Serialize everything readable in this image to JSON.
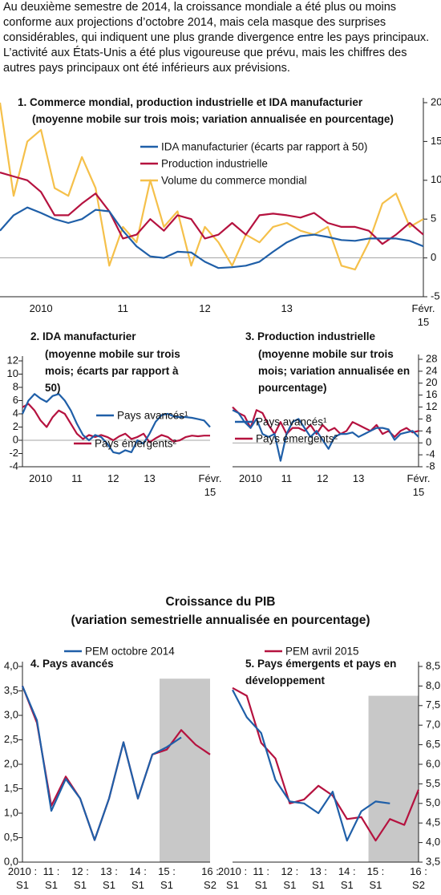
{
  "intro": "Au deuxième semestre de 2014, la croissance mondiale a été plus ou moins conforme aux projections d’octobre 2014, mais cela masque des surprises considérables, qui indiquent une plus grande divergence entre les pays principaux. L’activité aux États-Unis a été plus vigoureuse que prévu, mais les chiffres des autres pays principaux ont été inférieurs aux prévisions.",
  "section_title": "Croissance du PIB",
  "section_subtitle": "(variation semestrielle annualisée en pourcentage)",
  "chart_data": [
    {
      "type": "line",
      "title": "1. Commerce mondial, production industrielle et IDA manufacturier",
      "subtitle": "(moyenne mobile sur trois mois; variation annualisée en pourcentage)",
      "y_axis_side": "right",
      "zero_line": true,
      "categories": [
        null,
        null,
        null,
        "2010",
        null,
        null,
        null,
        null,
        null,
        "11",
        null,
        null,
        null,
        null,
        null,
        "12",
        null,
        null,
        null,
        null,
        null,
        "13",
        null,
        null,
        null,
        null,
        null,
        null,
        null,
        null,
        null,
        "Févr.\n15"
      ],
      "series": [
        {
          "name": "IDA manufacturier (écarts par rapport à 50)",
          "color": "#1f5fa8",
          "values": [
            3.5,
            5.5,
            6.5,
            5.8,
            5,
            4.5,
            5,
            6.2,
            6,
            3.5,
            1.5,
            0.2,
            0,
            0.8,
            0.7,
            -0.5,
            -1.3,
            -1.2,
            -1,
            -0.5,
            0.8,
            2,
            2.8,
            3,
            2.7,
            2.3,
            2.2,
            2.5,
            2.5,
            2.5,
            2.2,
            1.5
          ]
        },
        {
          "name": "Production industrielle",
          "color": "#b5123f",
          "values": [
            11,
            10.5,
            10,
            8.5,
            5.5,
            5.5,
            7,
            8.3,
            6,
            2.5,
            3,
            5,
            3.5,
            5.5,
            5,
            2.5,
            3,
            4.5,
            3,
            5.5,
            5.7,
            5.5,
            5.2,
            5.8,
            4.5,
            4,
            4,
            3.5,
            1.8,
            3,
            4.5,
            3
          ]
        },
        {
          "name": "Volume du commerce mondial",
          "color": "#f5c04a",
          "values": [
            20,
            8,
            15,
            16.5,
            9,
            8,
            13,
            9,
            -1,
            4,
            2,
            10,
            4,
            6,
            -1,
            4,
            2,
            -1,
            3,
            2,
            4,
            4.5,
            3.5,
            3,
            4,
            -1,
            -1.5,
            2,
            7,
            8.3,
            4,
            5
          ]
        }
      ],
      "ylim": [
        -5,
        20
      ],
      "yticks": [
        -5,
        0,
        5,
        10,
        15,
        20
      ]
    },
    {
      "type": "line",
      "title": "2. IDA manufacturier",
      "subtitle": "(moyenne mobile sur trois mois; écarts par rapport à 50)",
      "y_axis_side": "left",
      "zero_line": true,
      "categories": [
        null,
        null,
        null,
        "2010",
        null,
        null,
        null,
        null,
        null,
        "11",
        null,
        null,
        null,
        null,
        null,
        "12",
        null,
        null,
        null,
        null,
        null,
        "13",
        null,
        null,
        null,
        null,
        null,
        null,
        null,
        null,
        null,
        "Févr.\n15"
      ],
      "series": [
        {
          "name": "Pays avancés¹",
          "color": "#1f5fa8",
          "values": [
            4,
            6,
            7,
            6.3,
            5.8,
            6.7,
            7,
            6,
            4.5,
            2.5,
            0.8,
            0,
            0.8,
            0.5,
            -0.5,
            -1.8,
            -2,
            -1.5,
            -1.8,
            0,
            -0.5,
            1,
            2.8,
            3.8,
            4,
            3.6,
            3.5,
            3.5,
            3.4,
            3.2,
            3,
            2
          ]
        },
        {
          "name": "Pays émergents²",
          "color": "#b5123f",
          "values": [
            5,
            5.5,
            4.5,
            3,
            2,
            3.5,
            4.5,
            4,
            2.5,
            1,
            0.2,
            0.8,
            0.5,
            0.8,
            0.5,
            0,
            0.6,
            1,
            0.2,
            0.5,
            1,
            -0.3,
            0.3,
            0.8,
            0.5,
            -0.2,
            0,
            0.5,
            0.7,
            0.6,
            0.7,
            0.7
          ]
        }
      ],
      "ylim": [
        -4,
        12
      ],
      "yticks": [
        -4,
        -2,
        0,
        2,
        4,
        6,
        8,
        10,
        12
      ]
    },
    {
      "type": "line",
      "title": "3. Production industrielle",
      "subtitle": "(moyenne mobile sur trois mois; variation annualisée en pourcentage)",
      "y_axis_side": "right",
      "zero_line": true,
      "categories": [
        null,
        null,
        null,
        "2010",
        null,
        null,
        null,
        null,
        null,
        "11",
        null,
        null,
        null,
        null,
        null,
        "12",
        null,
        null,
        null,
        null,
        null,
        "13",
        null,
        null,
        null,
        null,
        null,
        null,
        null,
        null,
        null,
        "Févr.\n15"
      ],
      "series": [
        {
          "name": "Pays avancés¹",
          "color": "#1f5fa8",
          "values": [
            11,
            10,
            7,
            5,
            8,
            3,
            2,
            3,
            -6,
            3,
            7,
            8,
            5,
            2,
            4,
            1,
            -2,
            2,
            3,
            3,
            3.5,
            2,
            3,
            4,
            5,
            5,
            4.5,
            1,
            3,
            3.5,
            4,
            2
          ]
        },
        {
          "name": "Pays émergents²",
          "color": "#b5123f",
          "values": [
            12,
            10,
            9,
            5,
            11,
            10,
            6,
            3,
            7,
            3,
            5,
            5,
            4,
            6,
            3,
            6,
            4,
            5,
            3,
            4,
            7,
            6,
            5,
            4,
            6,
            3,
            4,
            2,
            4,
            5,
            3.5,
            4
          ]
        }
      ],
      "ylim": [
        -8,
        28
      ],
      "yticks": [
        -8,
        -4,
        0,
        4,
        8,
        12,
        16,
        20,
        24,
        28
      ]
    },
    {
      "type": "line",
      "title": "4. Pays avancés",
      "y_axis_side": "left",
      "zero_line": false,
      "categories": [
        "2010 :\nS1",
        null,
        "11 :\nS1",
        null,
        "12 :\nS1",
        null,
        "13 :\nS1",
        null,
        "14 :\nS1",
        null,
        "15 :\nS1",
        null,
        null,
        "16 :\nS2"
      ],
      "series": [
        {
          "name": "PEM octobre 2014",
          "color": "#1f5fa8",
          "values": [
            3.6,
            2.9,
            1.05,
            1.7,
            1.3,
            0.45,
            1.3,
            2.45,
            1.3,
            2.2,
            2.35,
            2.55,
            null,
            null
          ]
        },
        {
          "color": "#b5123f",
          "values": [
            3.6,
            2.85,
            1.15,
            1.75,
            1.3,
            0.45,
            1.3,
            2.45,
            1.3,
            2.2,
            2.3,
            2.7,
            2.4,
            2.2
          ]
        }
      ],
      "ylim": [
        0,
        4
      ],
      "yticks": [
        {
          "value": 0,
          "label": "0,0"
        },
        {
          "value": 0.5,
          "label": "0,5"
        },
        {
          "value": 1,
          "label": "1,0"
        },
        {
          "value": 1.5,
          "label": "1,5"
        },
        {
          "value": 2,
          "label": "2,0"
        },
        {
          "value": 2.5,
          "label": "2,5"
        },
        {
          "value": 3,
          "label": "3,0"
        },
        {
          "value": 3.5,
          "label": "3,5"
        },
        {
          "value": 4,
          "label": "4,0"
        }
      ]
    },
    {
      "type": "line",
      "title": "5. Pays émergents et pays en développement",
      "y_axis_side": "right",
      "zero_line": false,
      "categories": [
        "2010 :\nS1",
        null,
        "11 :\nS1",
        null,
        "12 :\nS1",
        null,
        "13 :\nS1",
        null,
        "14 :\nS1",
        null,
        "15 :\nS1",
        null,
        null,
        "16 :\nS2"
      ],
      "series": [
        {
          "color": "#1f5fa8",
          "values": [
            7.9,
            7.2,
            6.8,
            5.6,
            5.05,
            5.0,
            4.75,
            5.3,
            4.05,
            4.8,
            5.05,
            5.0,
            null,
            null
          ]
        },
        {
          "name": "PEM avril 2015",
          "color": "#b5123f",
          "values": [
            7.95,
            7.75,
            6.55,
            6.15,
            5.0,
            5.1,
            5.45,
            5.2,
            4.6,
            4.65,
            4.05,
            4.6,
            4.45,
            5.35
          ]
        }
      ],
      "ylim": [
        3.5,
        8.5
      ],
      "yticks": [
        {
          "value": 3.5,
          "label": "3,5"
        },
        {
          "value": 4,
          "label": "4,0"
        },
        {
          "value": 4.5,
          "label": "4,5"
        },
        {
          "value": 5,
          "label": "5,0"
        },
        {
          "value": 5.5,
          "label": "5,5"
        },
        {
          "value": 6,
          "label": "6,0"
        },
        {
          "value": 6.5,
          "label": "6,5"
        },
        {
          "value": 7,
          "label": "7,0"
        },
        {
          "value": 7.5,
          "label": "7,5"
        },
        {
          "value": 8,
          "label": "8,0"
        },
        {
          "value": 8.5,
          "label": "8,5"
        }
      ]
    }
  ]
}
